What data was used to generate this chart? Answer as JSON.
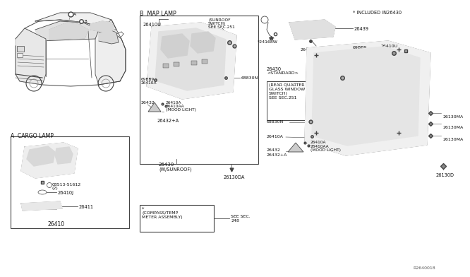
{
  "bg_color": "#ffffff",
  "diagram_id": "R2640018",
  "line_color": "#444444",
  "text_color": "#111111",
  "labels": {
    "section_a": "A  CARGO LAMP",
    "section_b": "B  MAP LAMP",
    "included": "* INCLUDED IN26430",
    "26410": "26410",
    "26411": "26411",
    "26410J": "26410J",
    "08513": "08513-51612",
    "08513_2": "(2)",
    "26410U_b": "26410U",
    "69BB9_b": "69BB9",
    "26410A_b": "26410A",
    "26410A_b2": "26410A",
    "26410AA_b": "26410AA",
    "mood_b": "(MOOD LIGHT)",
    "26432_b": "26432",
    "26432A_b": "26432+A",
    "26430_wsun": "26430",
    "26430_wsun2": "(W/SUNROOF)",
    "26130DA": "26130DA",
    "sunroof1": "(SUNROOF",
    "sunroof2": "SWITCH)",
    "sunroof3": "SEE SEC.251",
    "68830N_b": "68830N",
    "compass1": "*",
    "compass2": "(COMPASS/TEMP",
    "compass3": "METER ASSEMBLY)",
    "see_sec1": "SEE SEC.",
    "see_sec2": "248",
    "24168W": "*24168W",
    "26439": "26439",
    "26430B": "26430B",
    "69BB9_r1": "69BB9",
    "26410U_r": "26410U",
    "26430_std1": "26430",
    "26430_std2": "<STANDARD>",
    "69BB9_r2": "69BB9",
    "rq1": "(REAR QUARTER",
    "rq2": "GLASS WINDOW",
    "rq3": "SWITCH)",
    "rq4": "SEE SEC.251",
    "68830N_r": "68830N",
    "26410A_r": "26410A",
    "26410A_r2": "26410A",
    "26410AA_r": "26410AA",
    "mood_r": "(MOOD LIGHT)",
    "26432_r": "26432",
    "26432A_r": "26432+A",
    "26130MA_1": "26130MA",
    "26130MA_2": "26130MA",
    "26130MA_3": "26130MA",
    "26130D": "26130D"
  }
}
